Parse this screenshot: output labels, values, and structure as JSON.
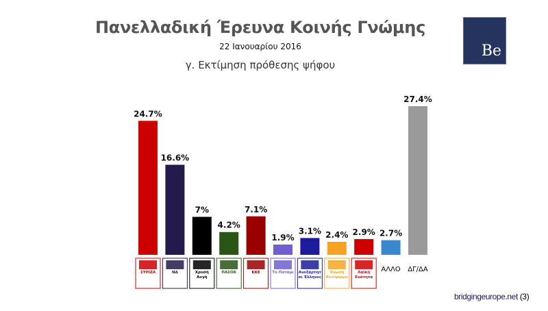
{
  "header": {
    "title": "Πανελλαδική Έρευνα Κοινής Γνώμης",
    "date": "22 Ιανουαρίου 2016",
    "subtitle": "γ. Εκτίμηση πρόθεσης ψήφου",
    "brand_logo_text": "Be"
  },
  "footer": {
    "site": "bridgingeurope.net",
    "page": "(3)"
  },
  "chart_data": {
    "type": "bar",
    "title": "γ. Εκτίμηση πρόθεσης ψήφου",
    "categories": [
      "ΣΥΡΙΖΑ",
      "ΝΔ",
      "Χρυσή Αυγή",
      "ΠΑΣΟΚ",
      "ΚΚΕ",
      "Το Ποτάμι",
      "Ανεξάρτητοι Έλληνες",
      "Ένωση Κεντρώων",
      "Λαϊκή Ενότητα",
      "ΑΛΛΟ",
      "ΔΓ/ΔΑ"
    ],
    "label_types": [
      "logo",
      "logo",
      "logo",
      "logo",
      "logo",
      "logo",
      "logo",
      "logo",
      "logo",
      "text",
      "text"
    ],
    "values": [
      24.7,
      16.6,
      7,
      4.2,
      7.1,
      1.9,
      3.1,
      2.4,
      2.9,
      2.7,
      27.4
    ],
    "data_labels": [
      "24.7%",
      "16.6%",
      "7%",
      "4.2%",
      "7.1%",
      "1.9%",
      "3.1%",
      "2.4%",
      "2.9%",
      "2.7%",
      "27.4%"
    ],
    "colors": [
      "#cc0000",
      "#241a4c",
      "#000000",
      "#2a5516",
      "#9a0000",
      "#6f5fd0",
      "#1b1b9c",
      "#f6a324",
      "#d00000",
      "#3a87cf",
      "#9a9a9a"
    ],
    "ylim": [
      0,
      30
    ],
    "grid": false,
    "legend": "none"
  }
}
